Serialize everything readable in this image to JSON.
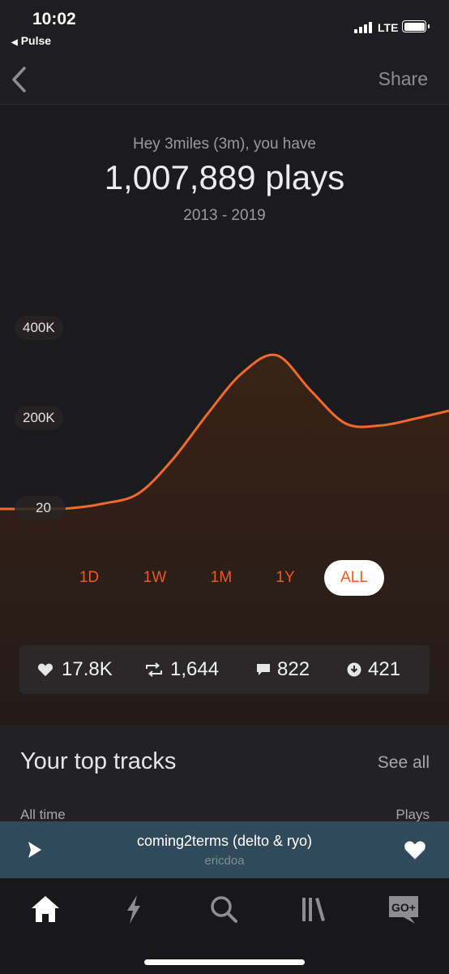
{
  "status": {
    "time": "10:02",
    "back_app": "Pulse",
    "network": "LTE"
  },
  "nav": {
    "share_label": "Share"
  },
  "summary": {
    "greeting": "Hey 3miles (3m), you have",
    "plays_total": "1,007,889 plays",
    "year_range": "2013 - 2019"
  },
  "chart_data": {
    "type": "area",
    "y_tick_labels": [
      "400K",
      "200K",
      "20"
    ],
    "series": [
      {
        "values": [
          20,
          20,
          1200,
          12000,
          34000,
          110000,
          210000,
          300000,
          340000,
          262000,
          190000,
          185000,
          200000,
          218000
        ]
      }
    ],
    "line_color": "#f26a2a",
    "fill_color": "#3a2216"
  },
  "periods": [
    "1D",
    "1W",
    "1M",
    "1Y",
    "ALL"
  ],
  "active_period": "ALL",
  "stats": {
    "likes": "17.8K",
    "reposts": "1,644",
    "comments": "822",
    "downloads": "421"
  },
  "top_tracks": {
    "title": "Your top tracks",
    "see_all": "See all",
    "col_left": "All time",
    "col_right": "Plays"
  },
  "mini_player": {
    "title": "coming2terms (delto & ryo)",
    "artist": "ericdoa"
  },
  "tabs": [
    "home",
    "stream",
    "search",
    "library",
    "go-plus"
  ],
  "tab_badge": "GO+"
}
